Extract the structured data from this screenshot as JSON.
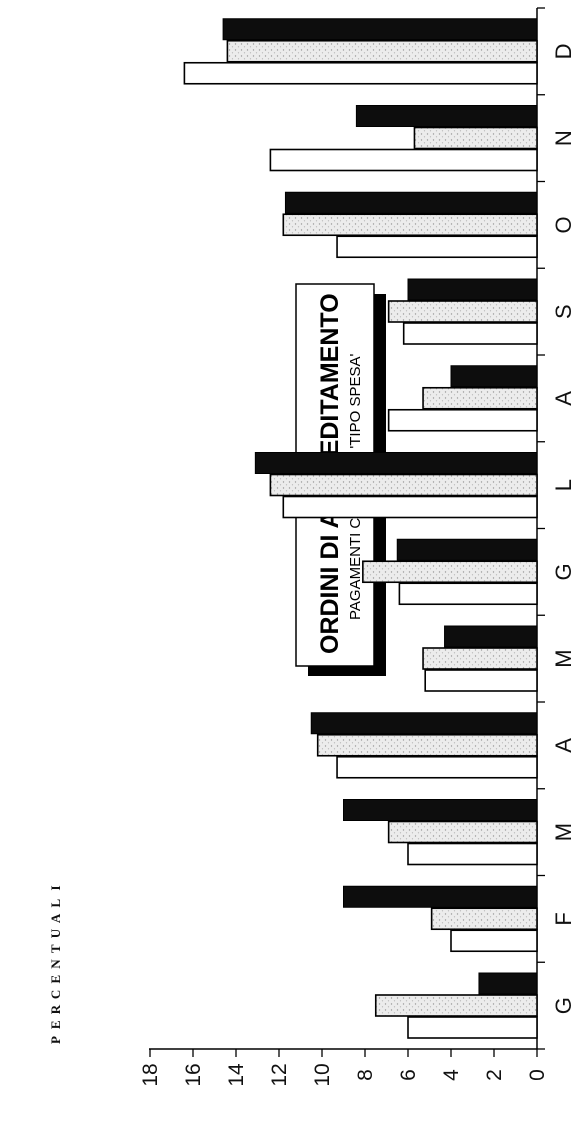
{
  "chart_data": {
    "type": "bar",
    "title": "ORDINI DI ACCREDITAMENTO",
    "subtitle": "PAGAMENTI CON % SU 'TIPO SPESA'",
    "ylabel": "PERCENTUALI",
    "xlabel": "",
    "ylim": [
      0,
      18
    ],
    "yticks": [
      "0",
      "2",
      "4",
      "6",
      "8",
      "10",
      "12",
      "14",
      "16",
      "18"
    ],
    "categories": [
      "G",
      "F",
      "M",
      "A",
      "M",
      "G",
      "L",
      "A",
      "S",
      "O",
      "N",
      "D"
    ],
    "series": [
      {
        "values": [
          6.0,
          4.0,
          6.0,
          9.3,
          5.2,
          6.4,
          11.8,
          6.9,
          6.2,
          9.3,
          12.4,
          16.4
        ]
      },
      {
        "values": [
          7.5,
          4.9,
          6.9,
          10.2,
          5.3,
          8.1,
          12.4,
          5.3,
          6.9,
          11.8,
          5.7,
          14.4
        ]
      },
      {
        "values": [
          2.7,
          9.0,
          9.0,
          10.5,
          4.3,
          6.5,
          13.1,
          4.0,
          6.0,
          11.7,
          8.4,
          14.6
        ]
      }
    ],
    "series_colors": [
      "#ffffff",
      "#e2e2e2",
      "#0d0d0d"
    ],
    "grid": false,
    "orientation": "rotated-90"
  }
}
